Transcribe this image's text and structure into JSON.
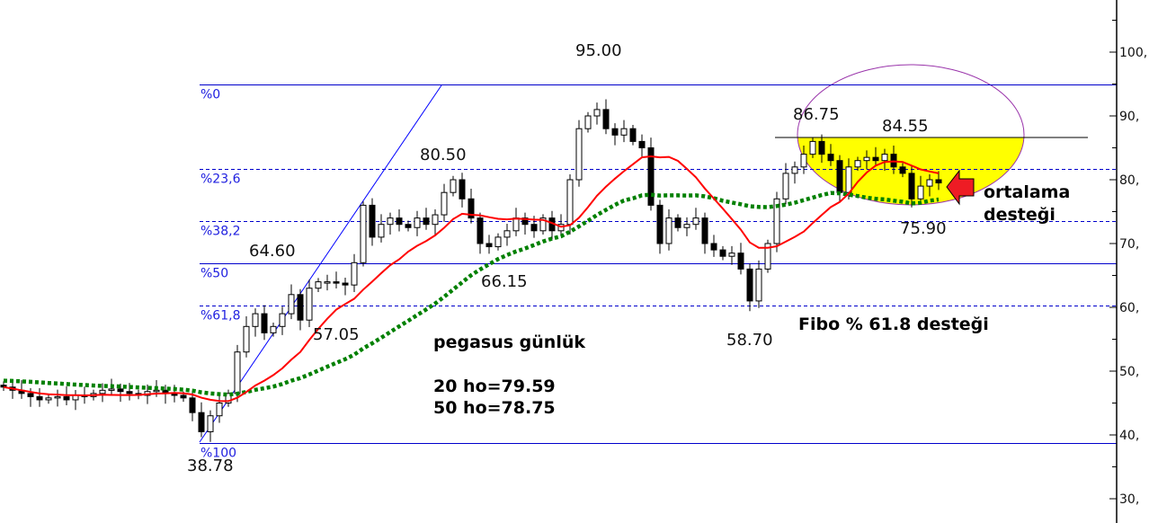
{
  "chart_data": {
    "type": "candlestick",
    "title": "pegasus günlük",
    "ylim": [
      27,
      109
    ],
    "y_ticks": [
      "100,",
      "90,",
      "80,",
      "70,",
      "60,",
      "50,",
      "40,",
      "30,"
    ],
    "y_tick_values": [
      100,
      90,
      80,
      70,
      60,
      50,
      40,
      30
    ],
    "grid": false,
    "close": [
      47.5,
      47,
      46.5,
      46,
      45.5,
      45.8,
      46,
      45.5,
      46.2,
      46,
      46.5,
      47,
      47.2,
      46.8,
      46.5,
      46.2,
      46.8,
      47,
      46.5,
      46.2,
      45.8,
      43.5,
      40.5,
      43,
      45,
      46.5,
      53,
      57,
      59,
      56,
      57,
      59,
      62,
      58,
      63,
      64,
      64,
      63.8,
      63.5,
      67,
      76,
      71,
      73,
      74,
      73,
      72.5,
      74,
      73,
      74.5,
      78,
      80,
      77,
      74,
      70,
      69.5,
      71,
      72,
      74,
      73,
      72,
      74,
      72,
      73,
      80,
      88,
      90,
      91,
      88,
      87,
      88,
      86,
      85,
      76,
      70,
      74,
      72.5,
      73,
      74,
      70,
      69,
      68,
      68.5,
      66,
      61,
      66,
      70,
      77,
      81,
      82,
      84,
      86,
      84,
      83,
      78,
      82,
      83,
      83.5,
      83,
      84,
      82,
      81,
      77,
      79,
      80,
      79.5
    ],
    "series": [
      {
        "name": "20 ho",
        "color": "#ff0000",
        "style": "solid"
      },
      {
        "name": "50 ho",
        "color": "#008000",
        "style": "dotted"
      }
    ],
    "fibonacci": {
      "high": 95.0,
      "low": 38.78,
      "levels": [
        {
          "label": "%0",
          "ratio": 0,
          "style": "solid"
        },
        {
          "label": "%23,6",
          "ratio": 0.236,
          "style": "dashed"
        },
        {
          "label": "%38,2",
          "ratio": 0.382,
          "style": "dashed"
        },
        {
          "label": "%50",
          "ratio": 0.5,
          "style": "solid"
        },
        {
          "label": "%61,8",
          "ratio": 0.618,
          "style": "dashed"
        },
        {
          "label": "%100",
          "ratio": 1,
          "style": "solid"
        }
      ],
      "color": "#0000cc"
    },
    "price_labels": [
      {
        "text": "95.00",
        "value": 95.0
      },
      {
        "text": "80.50",
        "value": 80.5
      },
      {
        "text": "64.60",
        "value": 64.6
      },
      {
        "text": "57.05",
        "value": 57.05
      },
      {
        "text": "66.15",
        "value": 66.15
      },
      {
        "text": "58.70",
        "value": 58.7
      },
      {
        "text": "86.75",
        "value": 86.75
      },
      {
        "text": "84.55",
        "value": 84.55
      },
      {
        "text": "75.90",
        "value": 75.9
      },
      {
        "text": "38.78",
        "value": 38.78
      }
    ],
    "resistance_line": 86.75,
    "annotations": {
      "title": "pegasus günlük",
      "ma20": "20 ho=79.59",
      "ma50": "50 ho=78.75",
      "fibo_support": "Fibo % 61.8 desteği",
      "ma_support_1": "ortalama",
      "ma_support_2": "desteği"
    },
    "colors": {
      "highlight": "#ffff00",
      "ellipse": "#9933aa",
      "arrow": "#ee1c24",
      "axis": "#000000"
    }
  }
}
